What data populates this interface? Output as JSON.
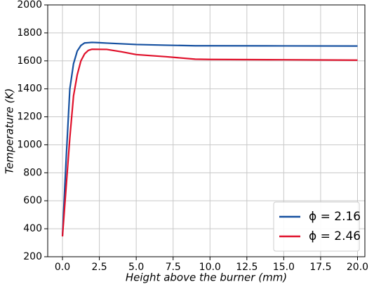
{
  "chart_data": {
    "type": "line",
    "x_label": "Height above the burner  (mm)",
    "y_label": "Temperature  (K)",
    "xlim": [
      -1,
      20.5
    ],
    "ylim": [
      200,
      2000
    ],
    "xticks": [
      {
        "value": 0,
        "label": "0.0"
      },
      {
        "value": 2.5,
        "label": "2.5"
      },
      {
        "value": 5,
        "label": "5.0"
      },
      {
        "value": 7.5,
        "label": "7.5"
      },
      {
        "value": 10,
        "label": "10.0"
      },
      {
        "value": 12.5,
        "label": "12.5"
      },
      {
        "value": 15,
        "label": "15.0"
      },
      {
        "value": 17.5,
        "label": "17.5"
      },
      {
        "value": 20,
        "label": "20.0"
      }
    ],
    "yticks": [
      200,
      400,
      600,
      800,
      1000,
      1200,
      1400,
      1600,
      1800,
      2000
    ],
    "grid": true,
    "legend": "lower-right",
    "series": [
      {
        "name": "ϕ = 2.16",
        "color": "#1550a0",
        "x": [
          0,
          0.25,
          0.5,
          0.75,
          1,
          1.25,
          1.5,
          2,
          2.5,
          3,
          4,
          5,
          7,
          9,
          10,
          15,
          20
        ],
        "values": [
          350,
          900,
          1400,
          1580,
          1670,
          1710,
          1728,
          1732,
          1730,
          1727,
          1722,
          1717,
          1712,
          1708,
          1708,
          1707,
          1706
        ]
      },
      {
        "name": "ϕ = 2.46",
        "color": "#e0102a",
        "x": [
          0,
          0.25,
          0.5,
          0.75,
          1,
          1.25,
          1.5,
          1.75,
          2,
          3,
          4,
          5,
          7,
          9,
          10,
          15,
          20
        ],
        "values": [
          345,
          700,
          1050,
          1350,
          1500,
          1600,
          1650,
          1675,
          1683,
          1682,
          1665,
          1645,
          1630,
          1612,
          1610,
          1608,
          1605
        ]
      }
    ]
  }
}
